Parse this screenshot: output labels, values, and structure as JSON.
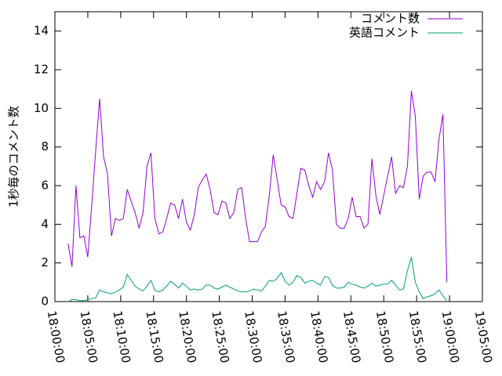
{
  "chart_data": {
    "type": "line",
    "ylabel": "1秒毎のコメント数",
    "legend": "top-right",
    "xlim": [
      "18:00:00",
      "19:05:00"
    ],
    "xticks": [
      "18:00:00",
      "18:05:00",
      "18:10:00",
      "18:15:00",
      "18:20:00",
      "18:25:00",
      "18:30:00",
      "18:35:00",
      "18:40:00",
      "18:45:00",
      "18:50:00",
      "18:55:00",
      "19:00:00",
      "19:05:00"
    ],
    "ylim": [
      0,
      15
    ],
    "yticks": [
      0,
      2,
      4,
      6,
      8,
      10,
      12,
      14
    ],
    "x": [
      "18:02:00",
      "18:02:36",
      "18:03:12",
      "18:03:48",
      "18:04:24",
      "18:05:00",
      "18:05:36",
      "18:06:12",
      "18:06:48",
      "18:07:24",
      "18:08:00",
      "18:08:36",
      "18:09:12",
      "18:09:48",
      "18:10:24",
      "18:11:00",
      "18:11:36",
      "18:12:12",
      "18:12:48",
      "18:13:24",
      "18:14:00",
      "18:14:36",
      "18:15:12",
      "18:15:48",
      "18:16:24",
      "18:17:00",
      "18:17:36",
      "18:18:12",
      "18:18:48",
      "18:19:24",
      "18:20:00",
      "18:20:36",
      "18:21:12",
      "18:21:48",
      "18:22:24",
      "18:23:00",
      "18:23:36",
      "18:24:12",
      "18:24:48",
      "18:25:24",
      "18:26:00",
      "18:26:36",
      "18:27:12",
      "18:27:48",
      "18:28:24",
      "18:29:00",
      "18:29:36",
      "18:30:12",
      "18:30:48",
      "18:31:24",
      "18:32:00",
      "18:32:36",
      "18:33:12",
      "18:33:48",
      "18:34:24",
      "18:35:00",
      "18:35:36",
      "18:36:12",
      "18:36:48",
      "18:37:24",
      "18:38:00",
      "18:38:36",
      "18:39:12",
      "18:39:48",
      "18:40:24",
      "18:41:00",
      "18:41:36",
      "18:42:12",
      "18:42:48",
      "18:43:24",
      "18:44:00",
      "18:44:36",
      "18:45:12",
      "18:45:48",
      "18:46:24",
      "18:47:00",
      "18:47:36",
      "18:48:12",
      "18:48:48",
      "18:49:24",
      "18:50:00",
      "18:50:36",
      "18:51:12",
      "18:51:48",
      "18:52:24",
      "18:53:00",
      "18:53:36",
      "18:54:12",
      "18:54:48",
      "18:55:24",
      "18:56:00",
      "18:56:36",
      "18:57:12",
      "18:57:48",
      "18:58:24",
      "18:59:00",
      "18:59:36"
    ],
    "series": [
      {
        "name": "コメント数",
        "color": "#9400d3",
        "values": [
          3.0,
          1.8,
          6.0,
          3.3,
          3.4,
          2.3,
          5.0,
          7.8,
          10.5,
          7.5,
          6.6,
          3.4,
          4.3,
          4.2,
          4.3,
          5.8,
          5.2,
          4.6,
          3.8,
          4.6,
          7.0,
          7.7,
          4.3,
          3.5,
          3.6,
          4.3,
          5.1,
          5.0,
          4.3,
          5.3,
          4.1,
          3.7,
          4.5,
          5.9,
          6.3,
          6.6,
          5.8,
          4.6,
          4.5,
          5.2,
          5.1,
          4.3,
          4.6,
          5.8,
          5.9,
          4.3,
          3.1,
          3.1,
          3.1,
          3.6,
          3.9,
          5.5,
          7.6,
          6.3,
          5.0,
          4.9,
          4.4,
          4.3,
          5.6,
          6.9,
          6.8,
          6.0,
          5.4,
          6.2,
          5.8,
          6.2,
          7.7,
          6.8,
          4.0,
          3.8,
          3.8,
          4.3,
          5.4,
          4.4,
          4.4,
          3.8,
          4.0,
          7.4,
          5.5,
          4.5,
          5.5,
          6.5,
          7.5,
          5.6,
          6.0,
          5.9,
          7.0,
          10.9,
          9.6,
          5.3,
          6.5,
          6.7,
          6.7,
          6.2,
          8.4,
          9.7,
          1.0
        ]
      },
      {
        "name": "英語コメント",
        "color": "#009e73",
        "values": [
          0.0,
          0.1,
          0.1,
          0.05,
          0.05,
          0.1,
          0.15,
          0.2,
          0.6,
          0.5,
          0.45,
          0.4,
          0.5,
          0.6,
          0.75,
          1.4,
          1.1,
          0.8,
          0.65,
          0.55,
          0.8,
          1.1,
          0.6,
          0.5,
          0.6,
          0.8,
          1.05,
          0.9,
          0.7,
          0.95,
          0.8,
          0.6,
          0.65,
          0.6,
          0.65,
          0.85,
          0.85,
          0.7,
          0.65,
          0.75,
          0.85,
          0.75,
          0.65,
          0.55,
          0.5,
          0.5,
          0.55,
          0.65,
          0.6,
          0.55,
          0.8,
          1.1,
          1.05,
          1.2,
          1.5,
          1.05,
          0.85,
          1.0,
          1.35,
          1.25,
          0.95,
          1.05,
          1.1,
          0.95,
          0.85,
          1.3,
          1.25,
          0.85,
          0.7,
          0.7,
          0.75,
          1.0,
          0.9,
          0.85,
          0.75,
          0.7,
          0.8,
          0.95,
          0.8,
          0.85,
          0.9,
          0.9,
          1.1,
          0.85,
          0.6,
          0.65,
          1.6,
          2.3,
          1.0,
          0.5,
          0.15,
          0.25,
          0.3,
          0.4,
          0.6,
          0.3,
          0.05
        ]
      }
    ]
  }
}
